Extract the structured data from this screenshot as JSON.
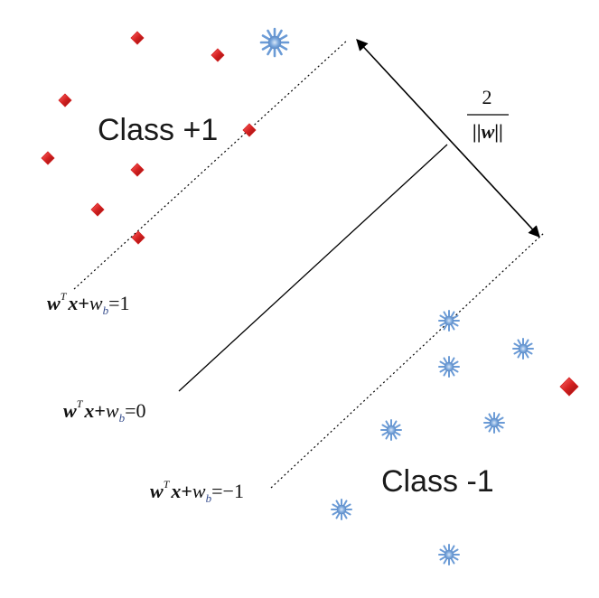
{
  "labels": {
    "class_pos": "Class +1",
    "class_neg": "Class -1"
  },
  "equations": {
    "pos": {
      "w": "w",
      "T": "T",
      "x": "x",
      "plus": "+",
      "w2": "w",
      "b": "b",
      "eq": "=",
      "rhs": "1"
    },
    "zero": {
      "w": "w",
      "T": "T",
      "x": "x",
      "plus": "+",
      "w2": "w",
      "b": "b",
      "eq": "=",
      "rhs": "0"
    },
    "neg": {
      "w": "w",
      "T": "T",
      "x": "x",
      "plus": "+",
      "w2": "w",
      "b": "b",
      "eq": "=",
      "rhs": "−1"
    }
  },
  "margin": {
    "numerator": "2",
    "denominator": "||w||"
  },
  "colors": {
    "positive_marker": "#d42020",
    "negative_marker": "#6b9bd6",
    "line": "#000000"
  },
  "icons": {
    "positive": "red-diamond-icon",
    "negative": "blue-star-icon"
  }
}
